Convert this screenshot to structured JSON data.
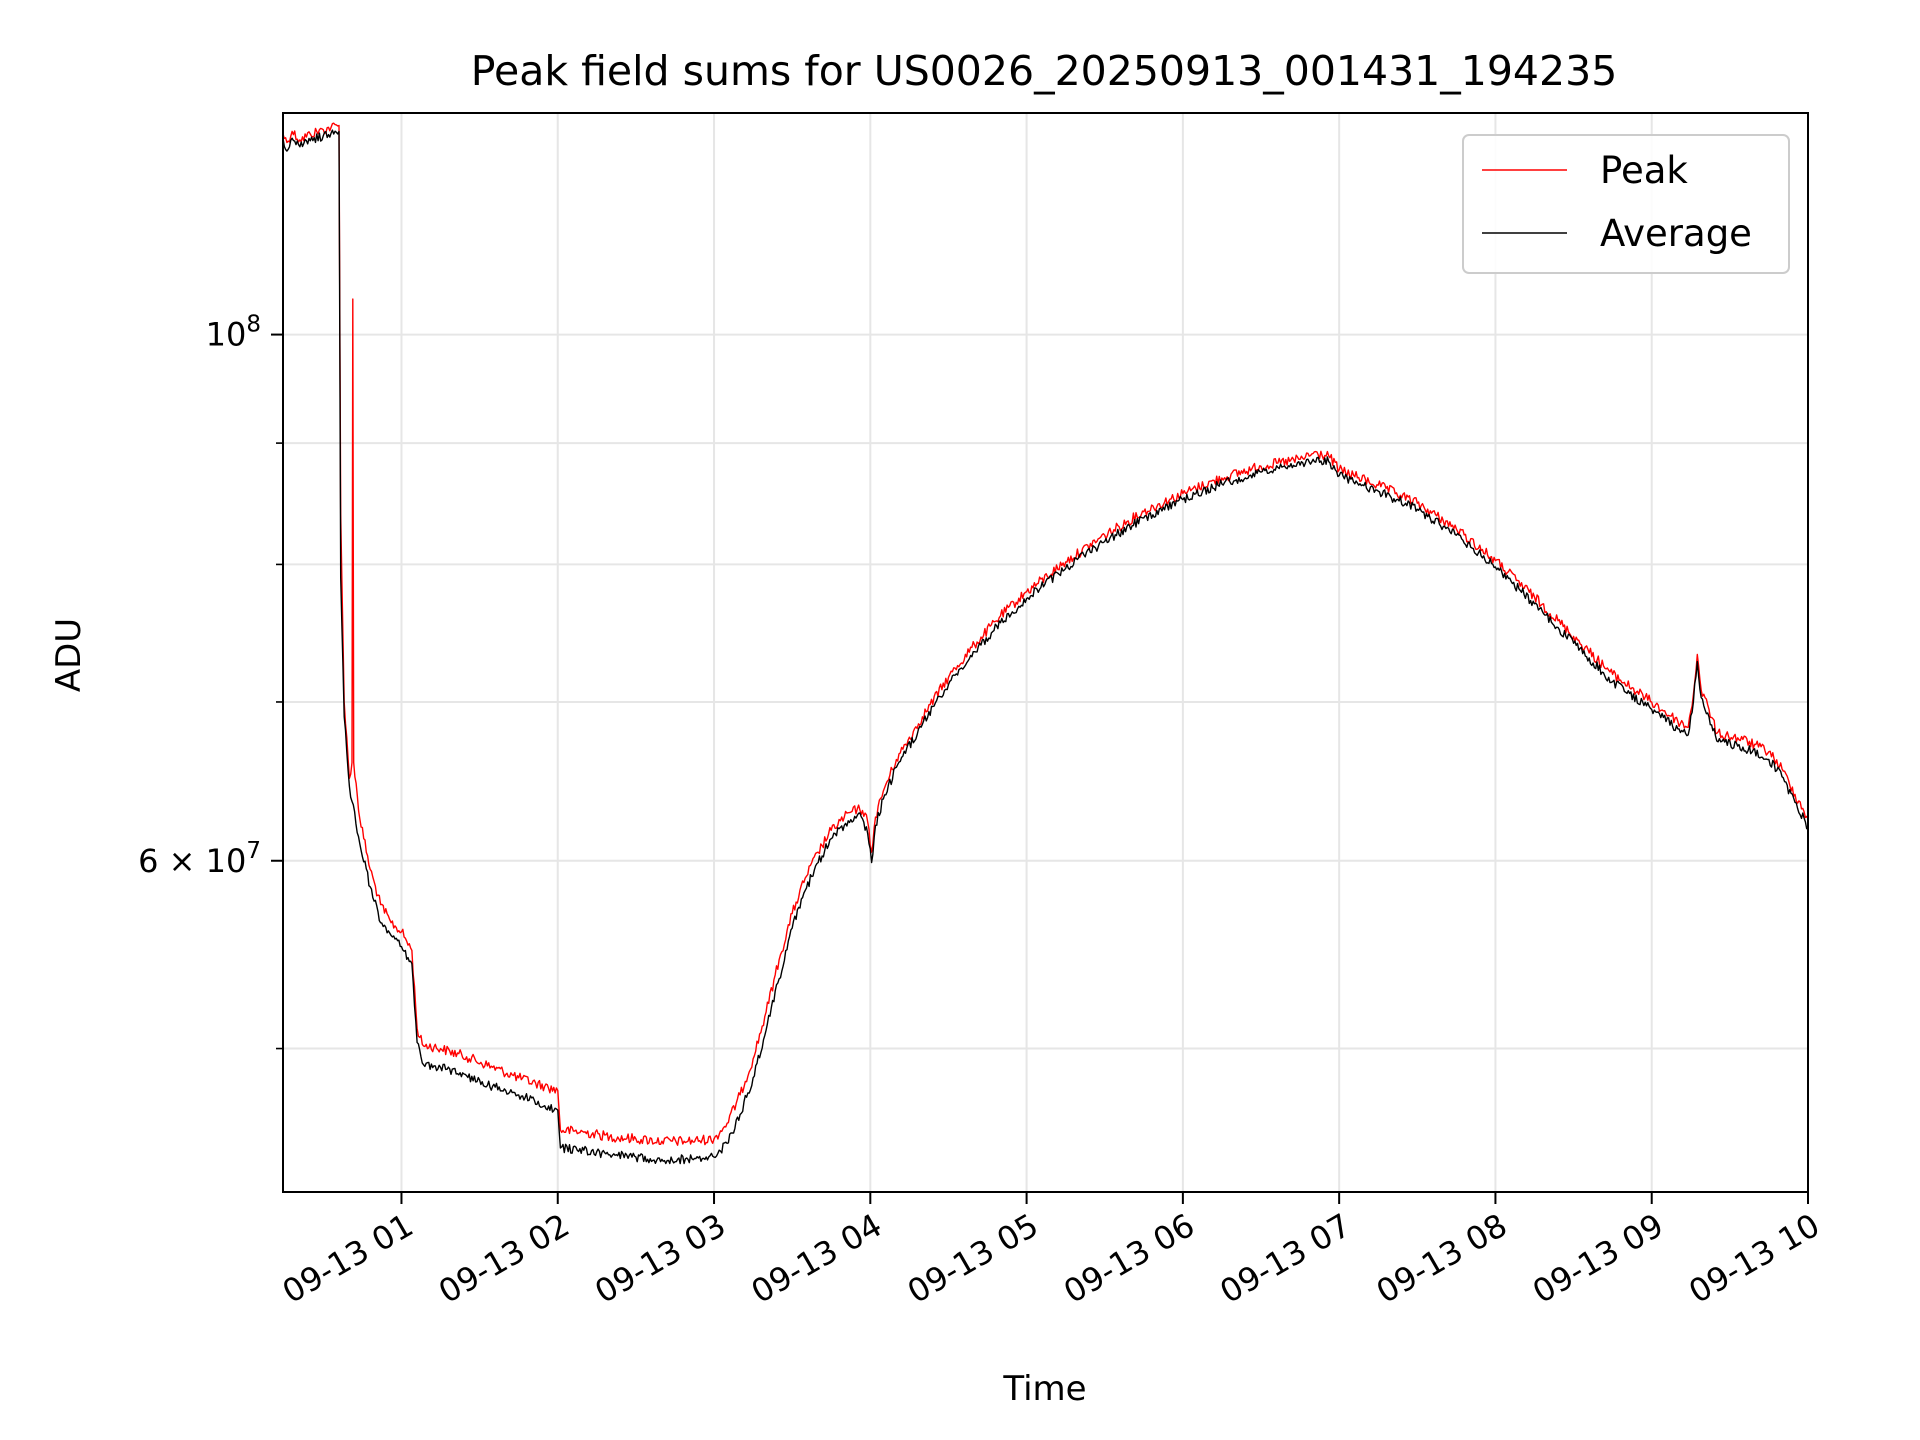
{
  "chart_data": {
    "type": "line",
    "title": "Peak field sums for US0026_20250913_001431_194235",
    "xlabel": "Time",
    "ylabel": "ADU",
    "y_scale": "log",
    "xlim": [
      "2025-09-13 00:14:31",
      "2025-09-13 10:00:00"
    ],
    "ylim": [
      43500000,
      124000000
    ],
    "grid": true,
    "legend_position": "top-right",
    "x_ticks": [
      "2025-09-13 01:00",
      "2025-09-13 02:00",
      "2025-09-13 03:00",
      "2025-09-13 04:00",
      "2025-09-13 05:00",
      "2025-09-13 06:00",
      "2025-09-13 07:00",
      "2025-09-13 08:00",
      "2025-09-13 09:00",
      "2025-09-13 10:00"
    ],
    "x_tick_labels": [
      "09-13 01",
      "09-13 02",
      "09-13 03",
      "09-13 04",
      "09-13 05",
      "09-13 06",
      "09-13 07",
      "09-13 08",
      "09-13 09",
      "09-13 10"
    ],
    "y_ticks": [
      60000000,
      100000000
    ],
    "y_tick_labels": [
      {
        "base": "6 × 10",
        "exp": "7"
      },
      {
        "base": "10",
        "exp": "8"
      }
    ],
    "y_minor_ticks": [
      50000000,
      70000000,
      80000000,
      90000000
    ],
    "series": [
      {
        "name": "Peak",
        "color": "#ff0000",
        "points": [
          [
            "2025-09-13 00:14:31",
            121500000
          ],
          [
            "2025-09-13 00:16:00",
            120500000
          ],
          [
            "2025-09-13 00:18:00",
            121800000
          ],
          [
            "2025-09-13 00:21:00",
            120800000
          ],
          [
            "2025-09-13 00:25:00",
            121500000
          ],
          [
            "2025-09-13 00:30:00",
            122000000
          ],
          [
            "2025-09-13 00:33:00",
            122300000
          ],
          [
            "2025-09-13 00:36:00",
            122500000
          ],
          [
            "2025-09-13 00:36:40",
            84000000
          ],
          [
            "2025-09-13 00:38:00",
            70000000
          ],
          [
            "2025-09-13 00:40:00",
            65000000
          ],
          [
            "2025-09-13 00:41:00",
            66000000
          ],
          [
            "2025-09-13 00:41:20",
            103500000
          ],
          [
            "2025-09-13 00:41:40",
            66000000
          ],
          [
            "2025-09-13 00:44:00",
            62500000
          ],
          [
            "2025-09-13 00:48:00",
            59500000
          ],
          [
            "2025-09-13 00:52:00",
            57500000
          ],
          [
            "2025-09-13 00:56:00",
            56500000
          ],
          [
            "2025-09-13 01:00:00",
            56000000
          ],
          [
            "2025-09-13 01:04:00",
            55000000
          ],
          [
            "2025-09-13 01:06:00",
            51000000
          ],
          [
            "2025-09-13 01:08:00",
            50200000
          ],
          [
            "2025-09-13 01:15:00",
            50000000
          ],
          [
            "2025-09-13 01:25:00",
            49600000
          ],
          [
            "2025-09-13 01:35:00",
            49100000
          ],
          [
            "2025-09-13 01:45:00",
            48600000
          ],
          [
            "2025-09-13 01:55:00",
            48200000
          ],
          [
            "2025-09-13 02:00:00",
            48000000
          ],
          [
            "2025-09-13 02:01:00",
            46200000
          ],
          [
            "2025-09-13 02:10:00",
            46100000
          ],
          [
            "2025-09-13 02:20:00",
            45900000
          ],
          [
            "2025-09-13 02:30:00",
            45800000
          ],
          [
            "2025-09-13 02:40:00",
            45700000
          ],
          [
            "2025-09-13 02:50:00",
            45700000
          ],
          [
            "2025-09-13 03:00:00",
            45800000
          ],
          [
            "2025-09-13 03:05:00",
            46500000
          ],
          [
            "2025-09-13 03:10:00",
            47800000
          ],
          [
            "2025-09-13 03:15:00",
            49500000
          ],
          [
            "2025-09-13 03:20:00",
            51800000
          ],
          [
            "2025-09-13 03:25:00",
            54500000
          ],
          [
            "2025-09-13 03:30:00",
            57000000
          ],
          [
            "2025-09-13 03:35:00",
            59000000
          ],
          [
            "2025-09-13 03:40:00",
            60500000
          ],
          [
            "2025-09-13 03:45:00",
            61800000
          ],
          [
            "2025-09-13 03:50:00",
            62600000
          ],
          [
            "2025-09-13 03:55:00",
            63100000
          ],
          [
            "2025-09-13 03:57:00",
            63000000
          ],
          [
            "2025-09-13 03:59:00",
            62300000
          ],
          [
            "2025-09-13 04:00:30",
            60500000
          ],
          [
            "2025-09-13 04:02:00",
            62600000
          ],
          [
            "2025-09-13 04:05:00",
            64200000
          ],
          [
            "2025-09-13 04:10:00",
            66200000
          ],
          [
            "2025-09-13 04:20:00",
            69000000
          ],
          [
            "2025-09-13 04:30:00",
            71700000
          ],
          [
            "2025-09-13 04:40:00",
            74000000
          ],
          [
            "2025-09-13 04:50:00",
            76100000
          ],
          [
            "2025-09-13 05:00:00",
            77900000
          ],
          [
            "2025-09-13 05:15:00",
            80200000
          ],
          [
            "2025-09-13 05:30:00",
            82300000
          ],
          [
            "2025-09-13 05:45:00",
            84200000
          ],
          [
            "2025-09-13 06:00:00",
            85700000
          ],
          [
            "2025-09-13 06:15:00",
            87000000
          ],
          [
            "2025-09-13 06:30:00",
            88000000
          ],
          [
            "2025-09-13 06:45:00",
            88600000
          ],
          [
            "2025-09-13 06:50:00",
            89100000
          ],
          [
            "2025-09-13 06:56:00",
            88900000
          ],
          [
            "2025-09-13 07:00:00",
            87700000
          ],
          [
            "2025-09-13 07:15:00",
            86400000
          ],
          [
            "2025-09-13 07:30:00",
            84900000
          ],
          [
            "2025-09-13 07:45:00",
            82800000
          ],
          [
            "2025-09-13 08:00:00",
            80300000
          ],
          [
            "2025-09-13 08:15:00",
            77500000
          ],
          [
            "2025-09-13 08:30:00",
            74600000
          ],
          [
            "2025-09-13 08:45:00",
            71900000
          ],
          [
            "2025-09-13 09:00:00",
            70000000
          ],
          [
            "2025-09-13 09:10:00",
            68700000
          ],
          [
            "2025-09-13 09:14:00",
            68300000
          ],
          [
            "2025-09-13 09:16:00",
            70500000
          ],
          [
            "2025-09-13 09:17:30",
            73300000
          ],
          [
            "2025-09-13 09:19:00",
            70800000
          ],
          [
            "2025-09-13 09:22:00",
            69500000
          ],
          [
            "2025-09-13 09:25:00",
            67900000
          ],
          [
            "2025-09-13 09:35:00",
            67500000
          ],
          [
            "2025-09-13 09:45:00",
            66700000
          ],
          [
            "2025-09-13 09:50:00",
            65600000
          ],
          [
            "2025-09-13 09:55:00",
            64000000
          ],
          [
            "2025-09-13 10:00:00",
            62500000
          ]
        ]
      },
      {
        "name": "Average",
        "color": "#000000",
        "points": [
          [
            "2025-09-13 00:14:31",
            121000000
          ],
          [
            "2025-09-13 00:16:00",
            119500000
          ],
          [
            "2025-09-13 00:18:00",
            121000000
          ],
          [
            "2025-09-13 00:21:00",
            120000000
          ],
          [
            "2025-09-13 00:25:00",
            120700000
          ],
          [
            "2025-09-13 00:30:00",
            121300000
          ],
          [
            "2025-09-13 00:33:00",
            121600000
          ],
          [
            "2025-09-13 00:36:00",
            121800000
          ],
          [
            "2025-09-13 00:36:40",
            79000000
          ],
          [
            "2025-09-13 00:38:00",
            69000000
          ],
          [
            "2025-09-13 00:40:00",
            64500000
          ],
          [
            "2025-09-13 00:44:00",
            61000000
          ],
          [
            "2025-09-13 00:48:00",
            58500000
          ],
          [
            "2025-09-13 00:52:00",
            56500000
          ],
          [
            "2025-09-13 00:56:00",
            55800000
          ],
          [
            "2025-09-13 01:00:00",
            55200000
          ],
          [
            "2025-09-13 01:04:00",
            54300000
          ],
          [
            "2025-09-13 01:06:00",
            50300000
          ],
          [
            "2025-09-13 01:08:00",
            49300000
          ],
          [
            "2025-09-13 01:15:00",
            49100000
          ],
          [
            "2025-09-13 01:25:00",
            48700000
          ],
          [
            "2025-09-13 01:35:00",
            48200000
          ],
          [
            "2025-09-13 01:45:00",
            47800000
          ],
          [
            "2025-09-13 01:55:00",
            47300000
          ],
          [
            "2025-09-13 02:00:00",
            47100000
          ],
          [
            "2025-09-13 02:01:00",
            45400000
          ],
          [
            "2025-09-13 02:10:00",
            45300000
          ],
          [
            "2025-09-13 02:20:00",
            45100000
          ],
          [
            "2025-09-13 02:30:00",
            45000000
          ],
          [
            "2025-09-13 02:40:00",
            44900000
          ],
          [
            "2025-09-13 02:50:00",
            44900000
          ],
          [
            "2025-09-13 03:00:00",
            45000000
          ],
          [
            "2025-09-13 03:05:00",
            45600000
          ],
          [
            "2025-09-13 03:10:00",
            46900000
          ],
          [
            "2025-09-13 03:15:00",
            48600000
          ],
          [
            "2025-09-13 03:20:00",
            50900000
          ],
          [
            "2025-09-13 03:25:00",
            53500000
          ],
          [
            "2025-09-13 03:30:00",
            56200000
          ],
          [
            "2025-09-13 03:35:00",
            58300000
          ],
          [
            "2025-09-13 03:40:00",
            59900000
          ],
          [
            "2025-09-13 03:45:00",
            61300000
          ],
          [
            "2025-09-13 03:50:00",
            62100000
          ],
          [
            "2025-09-13 03:55:00",
            62700000
          ],
          [
            "2025-09-13 03:57:00",
            62500000
          ],
          [
            "2025-09-13 03:59:00",
            61600000
          ],
          [
            "2025-09-13 04:00:30",
            59900000
          ],
          [
            "2025-09-13 04:02:00",
            62100000
          ],
          [
            "2025-09-13 04:05:00",
            63700000
          ],
          [
            "2025-09-13 04:10:00",
            65700000
          ],
          [
            "2025-09-13 04:20:00",
            68500000
          ],
          [
            "2025-09-13 04:30:00",
            71200000
          ],
          [
            "2025-09-13 04:40:00",
            73500000
          ],
          [
            "2025-09-13 04:50:00",
            75600000
          ],
          [
            "2025-09-13 05:00:00",
            77400000
          ],
          [
            "2025-09-13 05:15:00",
            79700000
          ],
          [
            "2025-09-13 05:30:00",
            81800000
          ],
          [
            "2025-09-13 05:45:00",
            83700000
          ],
          [
            "2025-09-13 06:00:00",
            85200000
          ],
          [
            "2025-09-13 06:15:00",
            86500000
          ],
          [
            "2025-09-13 06:30:00",
            87500000
          ],
          [
            "2025-09-13 06:45:00",
            88100000
          ],
          [
            "2025-09-13 06:50:00",
            88600000
          ],
          [
            "2025-09-13 06:56:00",
            88400000
          ],
          [
            "2025-09-13 07:00:00",
            87200000
          ],
          [
            "2025-09-13 07:15:00",
            85900000
          ],
          [
            "2025-09-13 07:30:00",
            84400000
          ],
          [
            "2025-09-13 07:45:00",
            82300000
          ],
          [
            "2025-09-13 08:00:00",
            79800000
          ],
          [
            "2025-09-13 08:15:00",
            77000000
          ],
          [
            "2025-09-13 08:30:00",
            74100000
          ],
          [
            "2025-09-13 08:45:00",
            71400000
          ],
          [
            "2025-09-13 09:00:00",
            69500000
          ],
          [
            "2025-09-13 09:10:00",
            68200000
          ],
          [
            "2025-09-13 09:14:00",
            67800000
          ],
          [
            "2025-09-13 09:16:00",
            70000000
          ],
          [
            "2025-09-13 09:17:30",
            72800000
          ],
          [
            "2025-09-13 09:19:00",
            70300000
          ],
          [
            "2025-09-13 09:22:00",
            69000000
          ],
          [
            "2025-09-13 09:25:00",
            67400000
          ],
          [
            "2025-09-13 09:35:00",
            67000000
          ],
          [
            "2025-09-13 09:45:00",
            66200000
          ],
          [
            "2025-09-13 09:50:00",
            65100000
          ],
          [
            "2025-09-13 09:55:00",
            63500000
          ],
          [
            "2025-09-13 10:00:00",
            62000000
          ]
        ]
      }
    ]
  }
}
